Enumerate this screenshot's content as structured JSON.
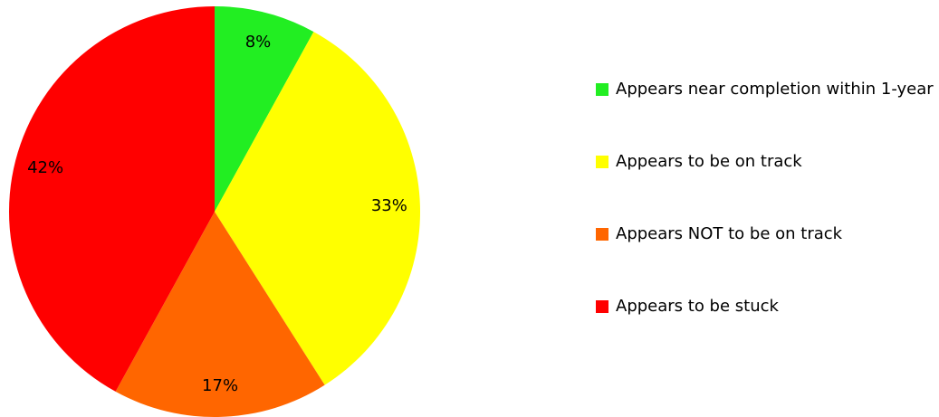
{
  "chart_data": {
    "type": "pie",
    "categories": [
      "Appears near completion within 1-year",
      "Appears to be on track",
      "Appears NOT to be on track",
      "Appears to be stuck"
    ],
    "values": [
      8,
      33,
      17,
      42
    ],
    "value_labels": [
      "8%",
      "33%",
      "17%",
      "42%"
    ],
    "colors": [
      "#22ee22",
      "#ffff00",
      "#ff6600",
      "#ff0000"
    ],
    "legend": "right"
  }
}
